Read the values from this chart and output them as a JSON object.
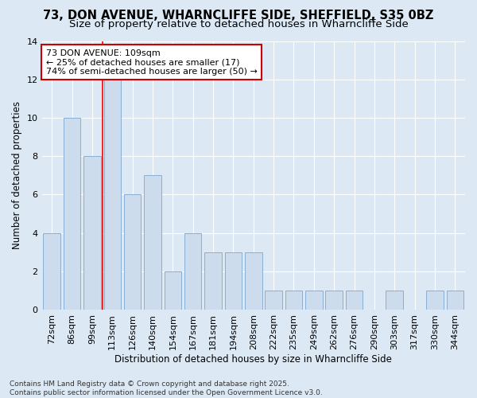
{
  "title1": "73, DON AVENUE, WHARNCLIFFE SIDE, SHEFFIELD, S35 0BZ",
  "title2": "Size of property relative to detached houses in Wharncliffe Side",
  "xlabel": "Distribution of detached houses by size in Wharncliffe Side",
  "ylabel": "Number of detached properties",
  "categories": [
    "72sqm",
    "86sqm",
    "99sqm",
    "113sqm",
    "126sqm",
    "140sqm",
    "154sqm",
    "167sqm",
    "181sqm",
    "194sqm",
    "208sqm",
    "222sqm",
    "235sqm",
    "249sqm",
    "262sqm",
    "276sqm",
    "290sqm",
    "303sqm",
    "317sqm",
    "330sqm",
    "344sqm"
  ],
  "values": [
    4,
    10,
    8,
    12,
    6,
    7,
    2,
    4,
    3,
    3,
    3,
    1,
    1,
    1,
    1,
    1,
    0,
    1,
    0,
    1,
    1
  ],
  "bar_color": "#cddcec",
  "bar_edge_color": "#8aafd4",
  "background_color": "#dce9f5",
  "grid_color": "#ffffff",
  "red_line_x": 2.5,
  "annotation_line1": "73 DON AVENUE: 109sqm",
  "annotation_line2": "← 25% of detached houses are smaller (17)",
  "annotation_line3": "74% of semi-detached houses are larger (50) →",
  "annotation_box_color": "#ffffff",
  "annotation_box_edge_color": "#cc0000",
  "footer1": "Contains HM Land Registry data © Crown copyright and database right 2025.",
  "footer2": "Contains public sector information licensed under the Open Government Licence v3.0.",
  "ylim": [
    0,
    14
  ],
  "title1_fontsize": 10.5,
  "title2_fontsize": 9.5,
  "tick_fontsize": 8,
  "ylabel_fontsize": 8.5,
  "xlabel_fontsize": 8.5,
  "annotation_fontsize": 8,
  "footer_fontsize": 6.5
}
